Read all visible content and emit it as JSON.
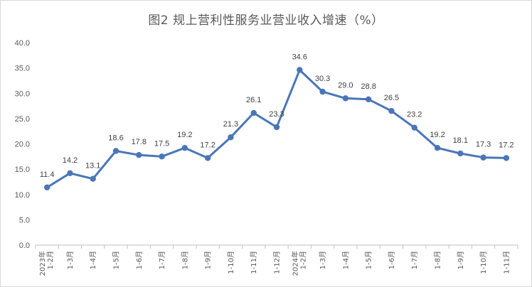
{
  "chart_data": {
    "type": "line",
    "title": "图2 规上营利性服务业营业收入增速（%）",
    "xlabel": "",
    "ylabel": "",
    "ylim": [
      0,
      40
    ],
    "yticks": [
      "0.0",
      "5.0",
      "10.0",
      "15.0",
      "20.0",
      "25.0",
      "30.0",
      "35.0",
      "40.0"
    ],
    "grid": false,
    "legend": "none",
    "categories": [
      "2023年 1-2月",
      "1-3月",
      "1-4月",
      "1-5月",
      "1-6月",
      "1-7月",
      "1-8月",
      "1-9月",
      "1-10月",
      "1-11月",
      "1-12月",
      "2024年 1-2月",
      "1-3月",
      "1-4月",
      "1-5月",
      "1-6月",
      "1-7月",
      "1-8月",
      "1-9月",
      "1-10月",
      "1-11月"
    ],
    "values": [
      11.4,
      14.2,
      13.1,
      18.6,
      17.8,
      17.5,
      19.2,
      17.2,
      21.3,
      26.1,
      23.3,
      34.6,
      30.3,
      29.0,
      28.8,
      26.5,
      23.2,
      19.2,
      18.1,
      17.3,
      17.2
    ],
    "value_labels": [
      "11.4",
      "14.2",
      "13.1",
      "18.6",
      "17.8",
      "17.5",
      "19.2",
      "17.2",
      "21.3",
      "26.1",
      "23.3",
      "34.6",
      "30.3",
      "29.0",
      "28.8",
      "26.5",
      "23.2",
      "19.2",
      "18.1",
      "17.3",
      "17.2"
    ],
    "line_color": "#4a76b8"
  }
}
